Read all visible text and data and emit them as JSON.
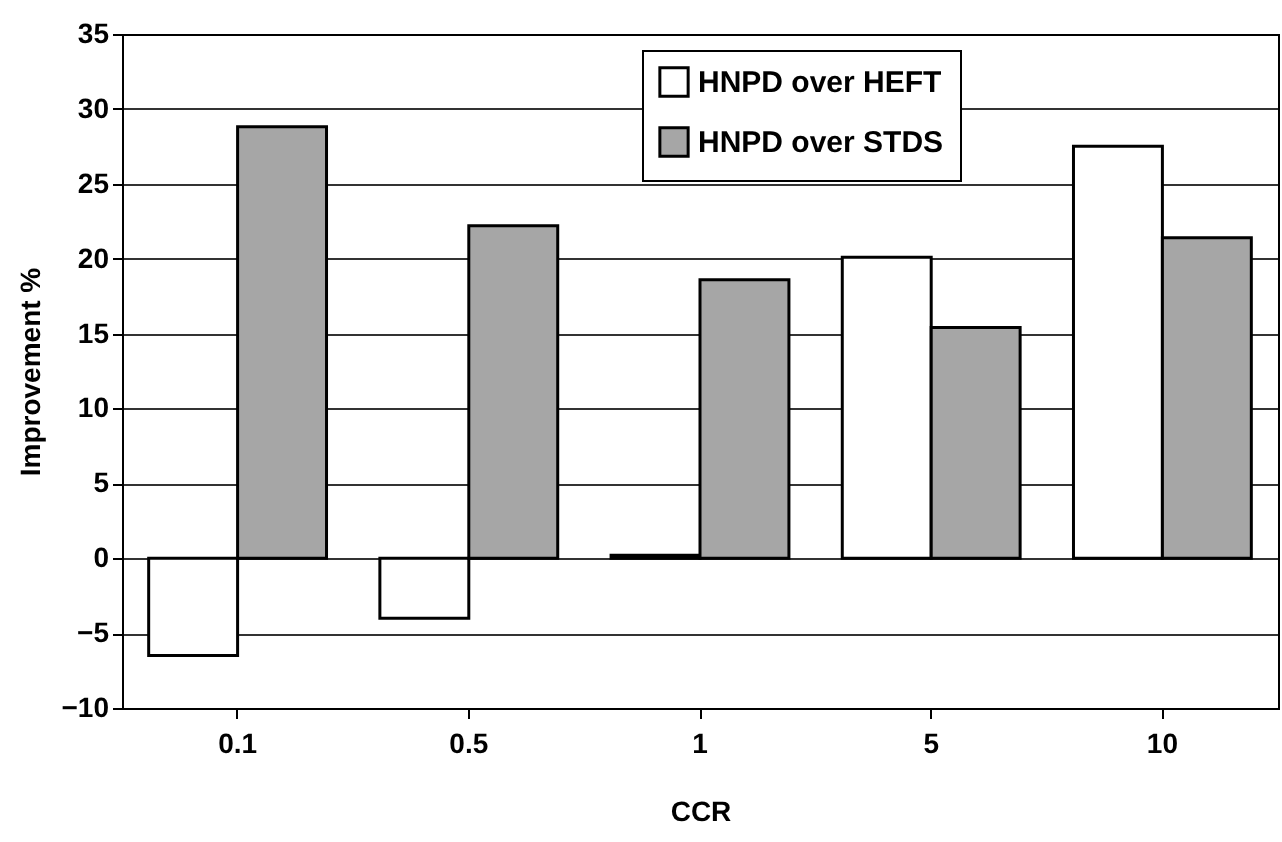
{
  "chart_data": {
    "type": "bar",
    "xlabel": "CCR",
    "ylabel": "Improvement %",
    "categories": [
      "0.1",
      "0.5",
      "1",
      "5",
      "10"
    ],
    "series": [
      {
        "name": "HNPD over HEFT",
        "color": "#ffffff",
        "values": [
          -6.5,
          -4.0,
          0.2,
          20.1,
          27.5
        ]
      },
      {
        "name": "HNPD over STDS",
        "color": "#a6a6a6",
        "values": [
          28.8,
          22.2,
          18.6,
          15.4,
          21.4
        ]
      }
    ],
    "ylim": [
      -10,
      35
    ],
    "yticks": [
      -10,
      -5,
      0,
      5,
      10,
      15,
      20,
      25,
      30,
      35
    ],
    "grid": "y",
    "legend": "top"
  }
}
